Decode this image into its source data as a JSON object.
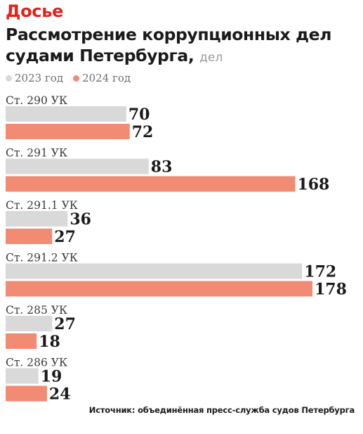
{
  "header": {
    "kicker": "Досье",
    "title": "Рассмотрение коррупционных дел судами Петербурга,",
    "unit": "дел"
  },
  "colors": {
    "kicker": "#e2231a",
    "series_2023": "#d9d9da",
    "series_2024": "#f28b73"
  },
  "source": "Источник: объединённая пресс-служба судов Петербурга",
  "chart_data": {
    "type": "bar",
    "orientation": "horizontal",
    "categories": [
      "Ст. 290 УК",
      "Ст. 291 УК",
      "Ст. 291.1 УК",
      "Ст. 291.2 УК",
      "Ст. 285 УК",
      "Ст. 286 УК"
    ],
    "series": [
      {
        "name": "2023 год",
        "values": [
          70,
          83,
          36,
          172,
          27,
          19
        ]
      },
      {
        "name": "2024 год",
        "values": [
          72,
          168,
          27,
          178,
          18,
          24
        ]
      }
    ],
    "xlim": [
      0,
      178
    ],
    "grid": false,
    "legend": "top-left"
  }
}
